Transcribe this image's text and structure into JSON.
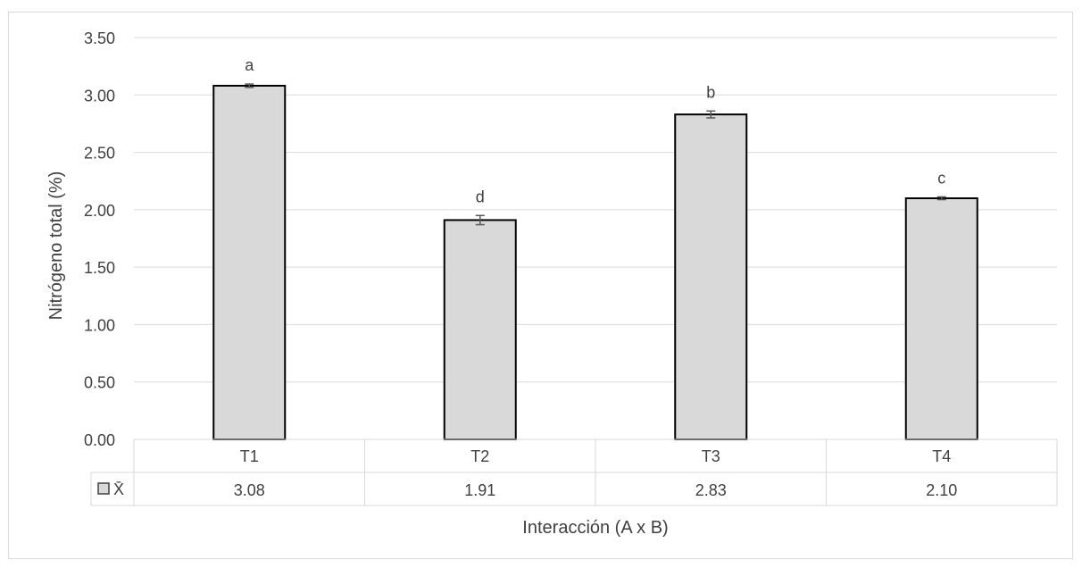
{
  "chart_data": {
    "type": "bar",
    "title": "",
    "ylabel": "Nitrógeno total (%)",
    "xlabel": "Interacción (A x B)",
    "ylim": [
      0,
      3.5
    ],
    "yticks": [
      "0.00",
      "0.50",
      "1.00",
      "1.50",
      "2.00",
      "2.50",
      "3.00",
      "3.50"
    ],
    "categories": [
      "T1",
      "T2",
      "T3",
      "T4"
    ],
    "series": [
      {
        "name": "X̄",
        "values": [
          3.08,
          1.91,
          2.83,
          2.1
        ],
        "value_labels": [
          "3.08",
          "1.91",
          "2.83",
          "2.10"
        ],
        "errors": [
          0.015,
          0.04,
          0.03,
          0.012
        ],
        "significance_letters": [
          "a",
          "d",
          "b",
          "c"
        ],
        "color": "#d9d9d9"
      }
    ],
    "grid": true,
    "data_table": true
  }
}
